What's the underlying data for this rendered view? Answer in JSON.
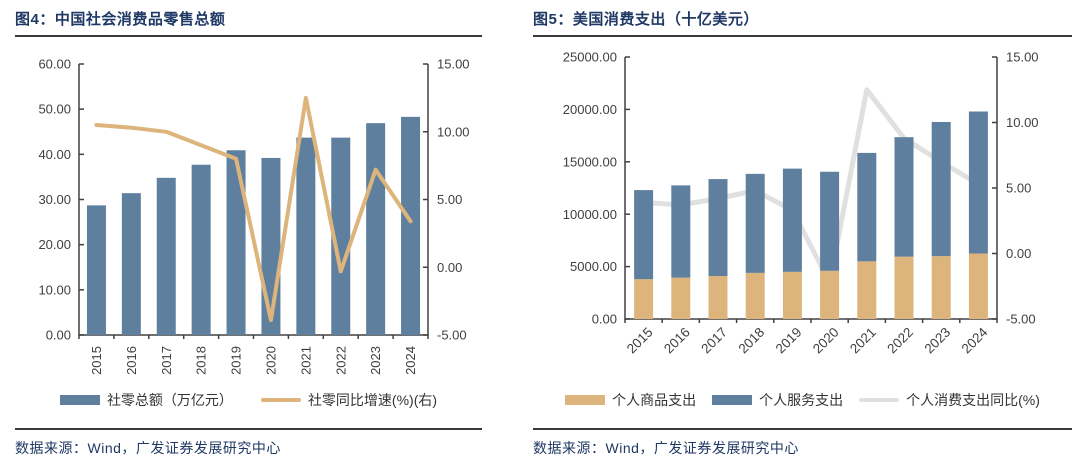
{
  "colors": {
    "title_navy": "#1f3864",
    "rule_dark": "#3a3a3a",
    "axis_text": "#404040",
    "bar_blue": "#5e809e",
    "line_tan": "#ddb57c",
    "line_grey": "#e0e0e0"
  },
  "figures": [
    {
      "title": "图4：中国社会消费品零售总额",
      "source": "数据来源：Wind，广发证券发展研究中心"
    },
    {
      "title": "图5：美国消费支出（十亿美元）",
      "source": "数据来源：Wind，广发证券发展研究中心"
    }
  ],
  "chart_data": [
    {
      "type": "bar",
      "title": "图4：中国社会消费品零售总额",
      "categories": [
        "2015",
        "2016",
        "2017",
        "2018",
        "2019",
        "2020",
        "2021",
        "2022",
        "2023",
        "2024"
      ],
      "series": [
        {
          "name": "社零总额（万亿元）",
          "type": "bar",
          "axis": "left",
          "color": "#5e809e",
          "values": [
            28.7,
            31.4,
            34.8,
            37.7,
            40.9,
            39.2,
            43.7,
            43.7,
            46.9,
            48.3
          ]
        },
        {
          "name": "社零同比增速(%)(右)",
          "type": "line",
          "axis": "right",
          "color": "#ddb57c",
          "values": [
            10.5,
            10.3,
            10.0,
            9.0,
            8.0,
            -3.9,
            12.5,
            -0.3,
            7.2,
            3.4
          ]
        }
      ],
      "left_axis": {
        "min": 0,
        "max": 60,
        "step": 10,
        "format_decimals": 2
      },
      "right_axis": {
        "min": -5,
        "max": 15,
        "step": 5,
        "format_decimals": 2
      },
      "grid": false,
      "legend_position": "bottom",
      "line_over_bars": true
    },
    {
      "type": "bar",
      "title": "图5：美国消费支出（十亿美元）",
      "categories": [
        "2015",
        "2016",
        "2017",
        "2018",
        "2019",
        "2020",
        "2021",
        "2022",
        "2023",
        "2024"
      ],
      "series": [
        {
          "name": "个人商品支出",
          "type": "bar",
          "stacked": true,
          "axis": "left",
          "color": "#ddb57c",
          "values": [
            3800,
            3950,
            4100,
            4400,
            4500,
            4600,
            5500,
            5950,
            6000,
            6250
          ]
        },
        {
          "name": "个人服务支出",
          "type": "bar",
          "stacked": true,
          "axis": "left",
          "color": "#5e809e",
          "values": [
            8500,
            8800,
            9250,
            9450,
            9850,
            9450,
            10350,
            11400,
            12800,
            13550
          ]
        },
        {
          "name": "个人消费支出同比(%)",
          "type": "line",
          "axis": "right",
          "color": "#e0e0e0",
          "values": [
            3.9,
            3.7,
            4.2,
            4.8,
            3.3,
            -2.2,
            12.5,
            8.8,
            7.0,
            5.3
          ]
        }
      ],
      "left_axis": {
        "min": 0,
        "max": 25000,
        "step": 5000,
        "format_decimals": 2
      },
      "right_axis": {
        "min": -5,
        "max": 15,
        "step": 5,
        "format_decimals": 2
      },
      "grid": false,
      "legend_position": "bottom",
      "line_over_bars": false
    }
  ]
}
